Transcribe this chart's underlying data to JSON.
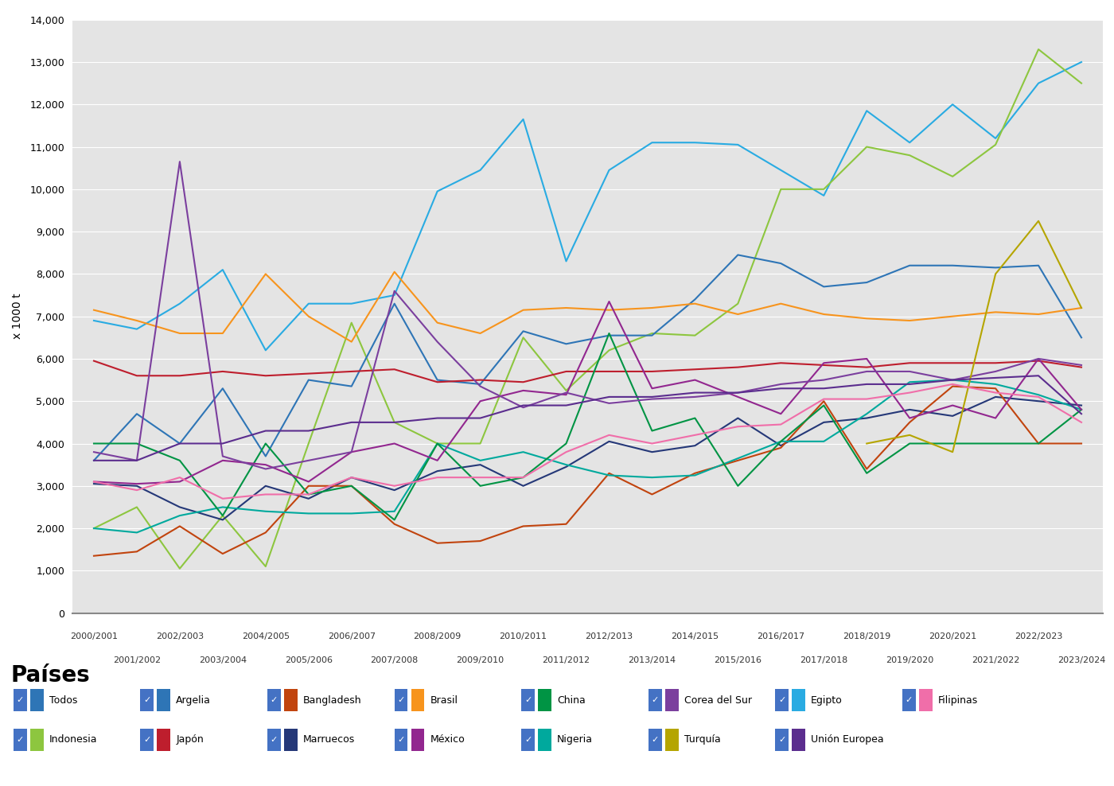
{
  "x_labels_odd": [
    "2000/2001",
    "2002/2003",
    "2004/2005",
    "2006/2007",
    "2008/2009",
    "2010/2011",
    "2012/2013",
    "2014/2015",
    "2016/2017",
    "2018/2019",
    "2020/2021",
    "2022/2023"
  ],
  "x_labels_even": [
    "2001/2002",
    "2003/2004",
    "2005/2006",
    "2007/2008",
    "2009/2010",
    "2011/2012",
    "2013/2014",
    "2015/2016",
    "2017/2018",
    "2019/2020",
    "2021/2022",
    "2023/2024"
  ],
  "series": {
    "Egipto": {
      "color": "#29ABE2",
      "values": [
        6900,
        6700,
        7300,
        8100,
        6200,
        7300,
        7300,
        7500,
        9950,
        10450,
        11650,
        8300,
        10450,
        11100,
        11100,
        11050,
        10450,
        9850,
        11850,
        11100,
        12000,
        11200,
        12500,
        13000
      ]
    },
    "Indonesia": {
      "color": "#8DC63F",
      "values": [
        2000,
        2500,
        1050,
        2300,
        1100,
        4000,
        6850,
        4500,
        4000,
        4000,
        6500,
        5250,
        6200,
        6600,
        6550,
        7300,
        10000,
        10000,
        11000,
        10800,
        10300,
        11050,
        13300,
        12500
      ]
    },
    "Argelia": {
      "color": "#2E75B6",
      "values": [
        3600,
        4700,
        4000,
        5300,
        3700,
        5500,
        5350,
        7300,
        5500,
        5400,
        6650,
        6350,
        6550,
        6550,
        7400,
        8450,
        8250,
        7700,
        7800,
        8200,
        8200,
        8150,
        8200,
        6500
      ]
    },
    "Brasil": {
      "color": "#F7941D",
      "values": [
        7150,
        6900,
        6600,
        6600,
        8000,
        7000,
        6400,
        8050,
        6850,
        6600,
        7150,
        7200,
        7150,
        7200,
        7300,
        7050,
        7300,
        7050,
        6950,
        6900,
        7000,
        7100,
        7050,
        7200
      ]
    },
    "Japón": {
      "color": "#BE1E2D",
      "values": [
        5950,
        5600,
        5600,
        5700,
        5600,
        5650,
        5700,
        5750,
        5450,
        5500,
        5450,
        5700,
        5700,
        5700,
        5750,
        5800,
        5900,
        5850,
        5800,
        5900,
        5900,
        5900,
        5950,
        5800
      ]
    },
    "Marruecos": {
      "color": "#253878",
      "values": [
        3050,
        3000,
        2500,
        2200,
        3000,
        2700,
        3200,
        2900,
        3350,
        3500,
        3000,
        3450,
        4050,
        3800,
        3950,
        4600,
        3950,
        4500,
        4600,
        4800,
        4650,
        5100,
        5000,
        4900
      ]
    },
    "Bangladesh": {
      "color": "#C1440E",
      "values": [
        1350,
        1450,
        2050,
        1400,
        1900,
        3000,
        3000,
        2100,
        1650,
        1700,
        2050,
        2100,
        3300,
        2800,
        3300,
        3600,
        3900,
        5000,
        3400,
        4500,
        5350,
        5300,
        4000,
        4000
      ]
    },
    "Nigeria": {
      "color": "#00A99D",
      "values": [
        2000,
        1900,
        2300,
        2500,
        2400,
        2350,
        2350,
        2400,
        4000,
        3600,
        3800,
        3500,
        3250,
        3200,
        3250,
        3650,
        4050,
        4050,
        4700,
        5450,
        5500,
        5400,
        5150,
        4800
      ]
    },
    "China": {
      "color": "#009444",
      "values": [
        4000,
        4000,
        3600,
        2300,
        4000,
        2800,
        3000,
        2200,
        4000,
        3000,
        3200,
        4000,
        6600,
        4300,
        4600,
        3000,
        4050,
        4900,
        3300,
        4000,
        4000,
        4000,
        4000,
        4800
      ]
    },
    "México": {
      "color": "#92278F",
      "values": [
        3100,
        3050,
        3100,
        3600,
        3500,
        3100,
        3800,
        4000,
        3600,
        5000,
        5250,
        5150,
        7350,
        5300,
        5500,
        5100,
        4700,
        5900,
        6000,
        4600,
        4900,
        4600,
        6000,
        4800
      ]
    },
    "Corea del Sur": {
      "color": "#7B3F9E",
      "values": [
        3800,
        3600,
        10650,
        3700,
        3400,
        3600,
        3800,
        7600,
        6400,
        5350,
        4850,
        5200,
        4950,
        5050,
        5100,
        5200,
        5400,
        5500,
        5700,
        5700,
        5500,
        5700,
        6000,
        5850
      ]
    },
    "Turquía": {
      "color": "#B5A500",
      "values": [
        null,
        null,
        null,
        null,
        null,
        null,
        null,
        null,
        null,
        null,
        null,
        null,
        null,
        null,
        null,
        null,
        null,
        null,
        4000,
        4200,
        3800,
        8000,
        9250,
        7200
      ]
    },
    "Filipinas": {
      "color": "#F06EA9",
      "values": [
        3100,
        2900,
        3200,
        2700,
        2800,
        2800,
        3200,
        3000,
        3200,
        3200,
        3200,
        3800,
        4200,
        4000,
        4200,
        4400,
        4450,
        5050,
        5050,
        5200,
        5400,
        5200,
        5100,
        4500
      ]
    },
    "Unión Europea": {
      "color": "#5B2D8E",
      "values": [
        3600,
        3600,
        4000,
        4000,
        4300,
        4300,
        4500,
        4500,
        4600,
        4600,
        4900,
        4900,
        5100,
        5100,
        5200,
        5200,
        5300,
        5300,
        5400,
        5400,
        5500,
        5550,
        5600,
        4700
      ]
    }
  },
  "ylabel": "x 1000 t",
  "ylim": [
    0,
    14000
  ],
  "yticks": [
    0,
    1000,
    2000,
    3000,
    4000,
    5000,
    6000,
    7000,
    8000,
    9000,
    10000,
    11000,
    12000,
    13000,
    14000
  ],
  "background_color": "#E4E4E4",
  "grid_color": "#FFFFFF",
  "legend_title": "Países",
  "legend_row1": [
    "Todos",
    "Argelia",
    "Bangladesh",
    "Brasil",
    "China",
    "Corea del Sur",
    "Egipto",
    "Filipinas"
  ],
  "legend_row2": [
    "Indonesia",
    "Japón",
    "Marruecos",
    "México",
    "Nigeria",
    "Turquía",
    "Unión Europea"
  ],
  "legend_colors": {
    "Todos": "#2E75B6",
    "Argelia": "#2E75B6",
    "Bangladesh": "#C1440E",
    "Brasil": "#F7941D",
    "China": "#009444",
    "Corea del Sur": "#7B3F9E",
    "Egipto": "#29ABE2",
    "Filipinas": "#F06EA9",
    "Indonesia": "#8DC63F",
    "Japón": "#BE1E2D",
    "Marruecos": "#253878",
    "México": "#92278F",
    "Nigeria": "#00A99D",
    "Turquía": "#B5A500",
    "Unión Europea": "#5B2D8E"
  },
  "checkbox_color": "#4472C4"
}
